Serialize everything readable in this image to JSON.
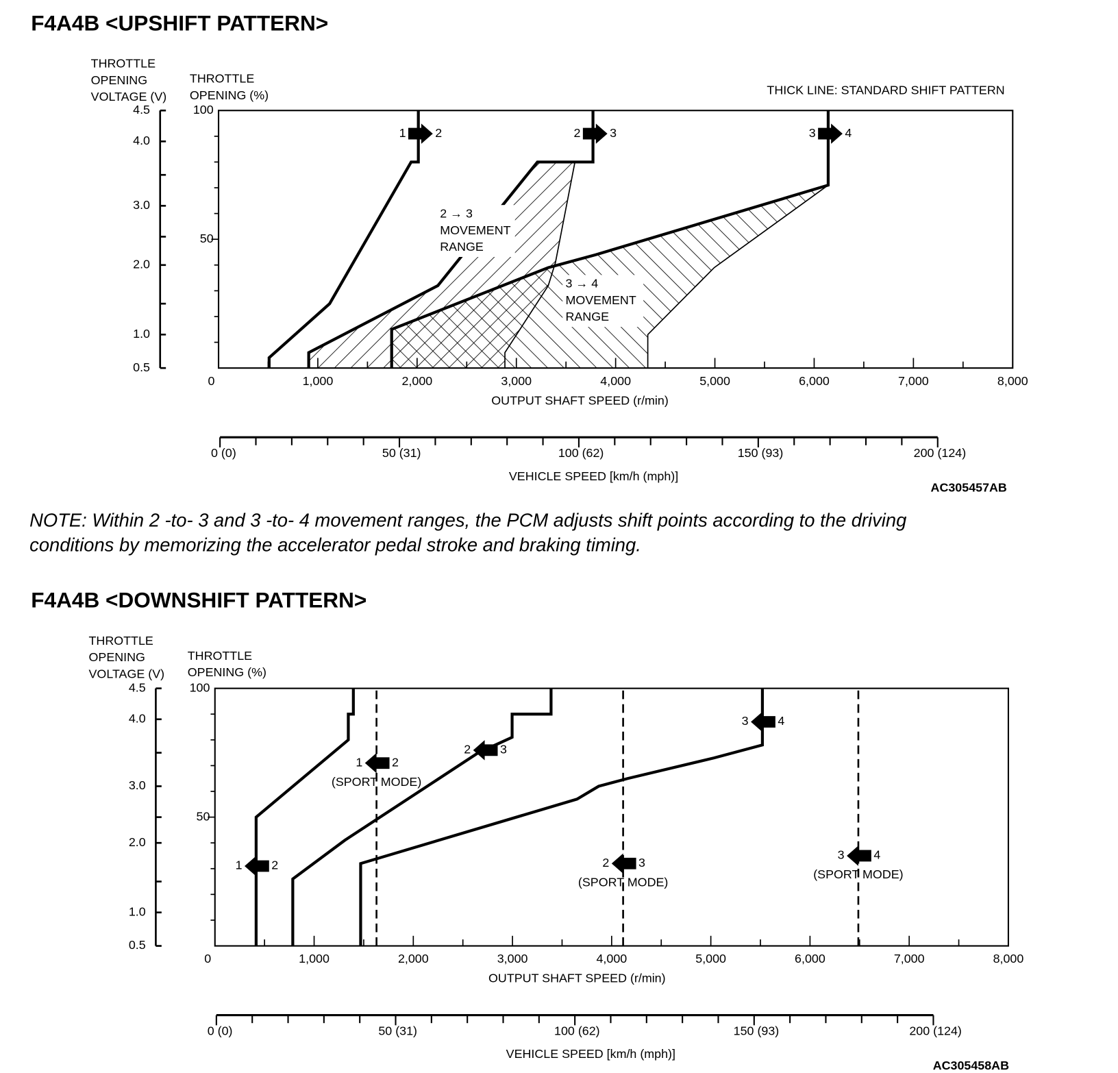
{
  "upshift": {
    "title": "F4A4B <UPSHIFT PATTERN>",
    "legend_note": "THICK LINE: STANDARD SHIFT PATTERN",
    "voltage_label": [
      "THROTTLE",
      "OPENING",
      "VOLTAGE (V)"
    ],
    "throttle_label": [
      "THROTTLE",
      "OPENING (%)"
    ],
    "xlabel": "OUTPUT SHAFT SPEED (r/min)",
    "vehicle_label": "VEHICLE SPEED [km/h (mph)]",
    "code": "AC305457AB",
    "range_23": [
      "2 → 3",
      "MOVEMENT",
      "RANGE"
    ],
    "range_34": [
      "3 → 4",
      "MOVEMENT",
      "RANGE"
    ]
  },
  "note": {
    "line1": "NOTE: Within 2 -to- 3 and 3 -to- 4 movement ranges, the PCM adjusts shift points according to the driving",
    "line2": "conditions by memorizing the accelerator pedal stroke and braking timing."
  },
  "downshift": {
    "title": "F4A4B <DOWNSHIFT PATTERN>",
    "voltage_label": [
      "THROTTLE",
      "OPENING",
      "VOLTAGE (V)"
    ],
    "throttle_label": [
      "THROTTLE",
      "OPENING (%)"
    ],
    "xlabel": "OUTPUT SHAFT SPEED (r/min)",
    "vehicle_label": "VEHICLE SPEED [km/h (mph)]",
    "code": "AC305458AB",
    "sport_mode": "(SPORT MODE)"
  },
  "chart_data": [
    {
      "type": "line",
      "title": "F4A4B <UPSHIFT PATTERN>",
      "xlabel": "OUTPUT SHAFT SPEED (r/min)",
      "ylabel": "THROTTLE OPENING (%)",
      "xlim": [
        0,
        8000
      ],
      "ylim": [
        0,
        100
      ],
      "x_ticks": [
        "0",
        "1,000",
        "2,000",
        "3,000",
        "4,000",
        "5,000",
        "6,000",
        "7,000",
        "8,000"
      ],
      "y_ticks": [
        "100",
        "50"
      ],
      "voltage_ticks": [
        {
          "label": "4.5",
          "pct": 100
        },
        {
          "label": "4.0",
          "pct": 88
        },
        {
          "label": "",
          "pct": 75
        },
        {
          "label": "3.0",
          "pct": 63
        },
        {
          "label": "",
          "pct": 51
        },
        {
          "label": "2.0",
          "pct": 40
        },
        {
          "label": "",
          "pct": 25
        },
        {
          "label": "1.0",
          "pct": 13
        },
        {
          "label": "0.5",
          "pct": 0
        }
      ],
      "vehicle_speed_ticks": [
        "0 (0)",
        "50 (31)",
        "100 (62)",
        "150 (93)",
        "200 (124)"
      ],
      "vehicle_speed_range": [
        0,
        200
      ],
      "series": [
        {
          "name": "1 → 2",
          "style": "thick",
          "from": "1",
          "to": "2",
          "arrow_pct": 91,
          "points": [
            [
              509,
              0
            ],
            [
              509,
              4
            ],
            [
              1119,
              25
            ],
            [
              1940,
              80
            ],
            [
              2013,
              80
            ],
            [
              2013,
              100
            ]
          ]
        },
        {
          "name": "2 → 3",
          "style": "thick",
          "from": "2",
          "to": "3",
          "arrow_pct": 91,
          "points": [
            [
              908,
              0
            ],
            [
              908,
              6
            ],
            [
              2209,
              32
            ],
            [
              3212,
              80
            ],
            [
              3772,
              80
            ],
            [
              3772,
              100
            ]
          ]
        },
        {
          "name": "2 → 3 range limit",
          "style": "thin",
          "points": [
            [
              3590,
              80
            ],
            [
              3394,
              41
            ],
            [
              3321,
              32
            ],
            [
              2885,
              6
            ],
            [
              2885,
              0
            ]
          ]
        },
        {
          "name": "3 → 4",
          "style": "thick",
          "from": "3",
          "to": "4",
          "arrow_pct": 91,
          "points": [
            [
              1744,
              0
            ],
            [
              1744,
              15
            ],
            [
              3321,
              39
            ],
            [
              3800,
              44
            ],
            [
              6141,
              71
            ],
            [
              6141,
              100
            ]
          ]
        },
        {
          "name": "3 → 4 range limit",
          "style": "thin",
          "points": [
            [
              6141,
              71
            ],
            [
              4993,
              39
            ],
            [
              4324,
              13
            ],
            [
              4324,
              0
            ]
          ]
        }
      ],
      "regions": [
        {
          "name": "2 → 3 MOVEMENT RANGE",
          "hatch": "backslash",
          "points": [
            [
              908,
              0
            ],
            [
              908,
              6
            ],
            [
              2209,
              32
            ],
            [
              3212,
              80
            ],
            [
              3590,
              80
            ],
            [
              3394,
              41
            ],
            [
              3321,
              32
            ],
            [
              2885,
              6
            ],
            [
              2885,
              0
            ]
          ]
        },
        {
          "name": "3 → 4 MOVEMENT RANGE",
          "hatch": "slash",
          "points": [
            [
              1744,
              0
            ],
            [
              1744,
              15
            ],
            [
              3321,
              39
            ],
            [
              3800,
              44
            ],
            [
              6141,
              71
            ],
            [
              4993,
              39
            ],
            [
              4324,
              13
            ],
            [
              4324,
              0
            ]
          ]
        }
      ]
    },
    {
      "type": "line",
      "title": "F4A4B <DOWNSHIFT PATTERN>",
      "xlabel": "OUTPUT SHAFT SPEED (r/min)",
      "ylabel": "THROTTLE OPENING (%)",
      "xlim": [
        0,
        8000
      ],
      "ylim": [
        0,
        100
      ],
      "x_ticks": [
        "0",
        "1,000",
        "2,000",
        "3,000",
        "4,000",
        "5,000",
        "6,000",
        "7,000",
        "8,000"
      ],
      "y_ticks": [
        "100",
        "50"
      ],
      "voltage_ticks": [
        {
          "label": "4.5",
          "pct": 100
        },
        {
          "label": "4.0",
          "pct": 88
        },
        {
          "label": "",
          "pct": 75
        },
        {
          "label": "3.0",
          "pct": 62
        },
        {
          "label": "",
          "pct": 50
        },
        {
          "label": "2.0",
          "pct": 40
        },
        {
          "label": "",
          "pct": 25
        },
        {
          "label": "1.0",
          "pct": 13
        },
        {
          "label": "0.5",
          "pct": 0
        }
      ],
      "vehicle_speed_ticks": [
        "0 (0)",
        "50 (31)",
        "100 (62)",
        "150 (93)",
        "200 (124)"
      ],
      "vehicle_speed_range": [
        0,
        200
      ],
      "series": [
        {
          "name": "1 ← 2",
          "style": "thick",
          "from": "1",
          "to": "2",
          "arrow_pct": 31,
          "points": [
            [
              415,
              0
            ],
            [
              415,
              50
            ],
            [
              1345,
              80
            ],
            [
              1345,
              90
            ],
            [
              1396,
              90
            ],
            [
              1396,
              100
            ]
          ]
        },
        {
          "name": "2 ← 3",
          "style": "thick",
          "from": "2",
          "to": "3",
          "arrow_pct": 76,
          "arrow_rpm": 2720,
          "points": [
            [
              785,
              0
            ],
            [
              785,
              26
            ],
            [
              1309,
              41
            ],
            [
              2655,
              75
            ],
            [
              2996,
              81
            ],
            [
              2996,
              90
            ],
            [
              3389,
              90
            ],
            [
              3389,
              100
            ]
          ]
        },
        {
          "name": "3 ← 4",
          "style": "thick",
          "from": "3",
          "to": "4",
          "arrow_pct": 87,
          "points": [
            [
              1469,
              0
            ],
            [
              1469,
              32
            ],
            [
              3651,
              57
            ],
            [
              3869,
              62
            ],
            [
              4160,
              65
            ],
            [
              5033,
              73
            ],
            [
              5520,
              78
            ],
            [
              5520,
              100
            ]
          ]
        },
        {
          "name": "1 ← 2 (SPORT MODE)",
          "style": "dashed",
          "from": "1",
          "to": "2",
          "arrow_pct": 71,
          "sport": true,
          "points": [
            [
              1629,
              0
            ],
            [
              1629,
              100
            ]
          ]
        },
        {
          "name": "2 ← 3 (SPORT MODE)",
          "style": "dashed",
          "from": "2",
          "to": "3",
          "arrow_pct": 32,
          "sport": true,
          "points": [
            [
              4116,
              0
            ],
            [
              4116,
              100
            ]
          ]
        },
        {
          "name": "3 ← 4 (SPORT MODE)",
          "style": "dashed",
          "from": "3",
          "to": "4",
          "arrow_pct": 35,
          "sport": true,
          "points": [
            [
              6487,
              0
            ],
            [
              6487,
              100
            ]
          ]
        }
      ]
    }
  ]
}
